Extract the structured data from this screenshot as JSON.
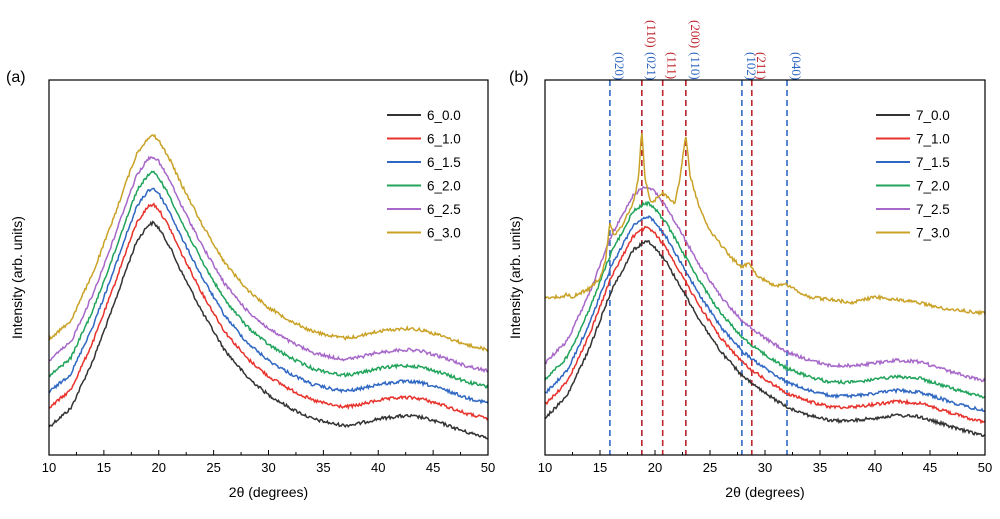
{
  "chart_data": [
    {
      "type": "line",
      "panel_label": "(a)",
      "xlabel": "2θ (degrees)",
      "ylabel": "Intensity (arb. units)",
      "xlim": [
        10,
        50
      ],
      "xticks": [
        "10",
        "15",
        "20",
        "25",
        "30",
        "35",
        "40",
        "45",
        "50"
      ],
      "legend_position": "top-right",
      "grid": false,
      "series": [
        {
          "name": "6_0.0",
          "color": "#333333",
          "offset": 0.0,
          "x": [
            10,
            12,
            14,
            16,
            17,
            18,
            19,
            19.5,
            20,
            21,
            22,
            24,
            26,
            28,
            30,
            32,
            34,
            36,
            37,
            38,
            40,
            42,
            43,
            44,
            46,
            48,
            50
          ],
          "y": [
            0.05,
            0.12,
            0.3,
            0.52,
            0.64,
            0.75,
            0.81,
            0.82,
            0.8,
            0.73,
            0.64,
            0.48,
            0.34,
            0.24,
            0.17,
            0.12,
            0.08,
            0.06,
            0.055,
            0.06,
            0.08,
            0.09,
            0.09,
            0.085,
            0.06,
            0.03,
            0.01
          ]
        },
        {
          "name": "6_1.0",
          "color": "#e8322c",
          "offset": 0.07,
          "x": [
            10,
            12,
            14,
            16,
            17,
            18,
            19,
            19.5,
            20,
            21,
            22,
            24,
            26,
            28,
            30,
            32,
            34,
            36,
            37,
            38,
            40,
            42,
            43,
            44,
            46,
            48,
            50
          ],
          "y": [
            0.05,
            0.12,
            0.3,
            0.52,
            0.64,
            0.75,
            0.81,
            0.82,
            0.8,
            0.73,
            0.64,
            0.48,
            0.34,
            0.24,
            0.17,
            0.12,
            0.08,
            0.06,
            0.055,
            0.06,
            0.08,
            0.09,
            0.09,
            0.085,
            0.06,
            0.03,
            0.01
          ]
        },
        {
          "name": "6_1.5",
          "color": "#2f67c2",
          "offset": 0.13,
          "x": [
            10,
            12,
            14,
            16,
            17,
            18,
            19,
            19.5,
            20,
            21,
            22,
            24,
            26,
            28,
            30,
            32,
            34,
            36,
            37,
            38,
            40,
            42,
            43,
            44,
            46,
            48,
            50
          ],
          "y": [
            0.05,
            0.12,
            0.3,
            0.52,
            0.64,
            0.75,
            0.81,
            0.82,
            0.8,
            0.73,
            0.64,
            0.48,
            0.34,
            0.24,
            0.17,
            0.12,
            0.08,
            0.06,
            0.055,
            0.06,
            0.08,
            0.09,
            0.09,
            0.085,
            0.06,
            0.03,
            0.01
          ]
        },
        {
          "name": "6_2.0",
          "color": "#20a35a",
          "offset": 0.19,
          "x": [
            10,
            12,
            14,
            16,
            17,
            18,
            19,
            19.5,
            20,
            21,
            22,
            24,
            26,
            28,
            30,
            32,
            34,
            36,
            37,
            38,
            40,
            42,
            43,
            44,
            46,
            48,
            50
          ],
          "y": [
            0.05,
            0.12,
            0.3,
            0.52,
            0.64,
            0.75,
            0.81,
            0.82,
            0.8,
            0.73,
            0.64,
            0.48,
            0.34,
            0.24,
            0.17,
            0.12,
            0.08,
            0.06,
            0.055,
            0.06,
            0.08,
            0.09,
            0.09,
            0.085,
            0.06,
            0.03,
            0.01
          ]
        },
        {
          "name": "6_2.5",
          "color": "#a768c9",
          "offset": 0.25,
          "x": [
            10,
            12,
            14,
            16,
            17,
            18,
            19,
            19.5,
            20,
            21,
            22,
            24,
            26,
            28,
            30,
            32,
            34,
            36,
            37,
            38,
            40,
            42,
            43,
            44,
            46,
            48,
            50
          ],
          "y": [
            0.05,
            0.12,
            0.3,
            0.52,
            0.64,
            0.75,
            0.81,
            0.82,
            0.8,
            0.73,
            0.64,
            0.48,
            0.34,
            0.24,
            0.17,
            0.12,
            0.08,
            0.06,
            0.055,
            0.06,
            0.08,
            0.09,
            0.09,
            0.085,
            0.06,
            0.03,
            0.01
          ]
        },
        {
          "name": "6_3.0",
          "color": "#c9a227",
          "offset": 0.33,
          "x": [
            10,
            12,
            14,
            16,
            17,
            18,
            19,
            19.5,
            20,
            21,
            22,
            24,
            26,
            28,
            30,
            32,
            34,
            36,
            37,
            38,
            40,
            42,
            43,
            44,
            46,
            48,
            50
          ],
          "y": [
            0.05,
            0.12,
            0.3,
            0.52,
            0.64,
            0.75,
            0.81,
            0.82,
            0.8,
            0.73,
            0.64,
            0.48,
            0.34,
            0.24,
            0.17,
            0.12,
            0.08,
            0.06,
            0.055,
            0.06,
            0.08,
            0.09,
            0.09,
            0.085,
            0.06,
            0.03,
            0.01
          ]
        }
      ]
    },
    {
      "type": "line",
      "panel_label": "(b)",
      "xlabel": "2θ (degrees)",
      "ylabel": "Intensity (arb. units)",
      "xlim": [
        10,
        50
      ],
      "xticks": [
        "10",
        "15",
        "20",
        "25",
        "30",
        "35",
        "40",
        "45",
        "50"
      ],
      "legend_position": "top-right",
      "grid": false,
      "reference_lines": [
        {
          "x": 15.9,
          "label": "(020)",
          "color": "#2f67c2"
        },
        {
          "x": 18.8,
          "label": "(021)",
          "color": "#2f67c2"
        },
        {
          "x": 18.8,
          "label": "(110)",
          "color": "#c0262d",
          "row": "top"
        },
        {
          "x": 20.7,
          "label": "(111)",
          "color": "#c0262d"
        },
        {
          "x": 22.8,
          "label": "(110)",
          "color": "#2f67c2"
        },
        {
          "x": 22.8,
          "label": "(200)",
          "color": "#c0262d",
          "row": "top"
        },
        {
          "x": 27.9,
          "label": "(102)",
          "color": "#2f67c2"
        },
        {
          "x": 28.8,
          "label": "(211)",
          "color": "#c0262d"
        },
        {
          "x": 32.0,
          "label": "(040)",
          "color": "#2f67c2"
        }
      ],
      "series": [
        {
          "name": "7_0.0",
          "color": "#333333",
          "offset": 0.0,
          "x": [
            10,
            12,
            14,
            16,
            18,
            19,
            19.5,
            20,
            21,
            22,
            24,
            26,
            28,
            30,
            32,
            34,
            36,
            38,
            40,
            42,
            44,
            46,
            48,
            50
          ],
          "y": [
            0.08,
            0.16,
            0.33,
            0.54,
            0.69,
            0.72,
            0.72,
            0.7,
            0.65,
            0.58,
            0.44,
            0.32,
            0.23,
            0.17,
            0.12,
            0.09,
            0.07,
            0.07,
            0.08,
            0.09,
            0.085,
            0.06,
            0.035,
            0.015
          ]
        },
        {
          "name": "7_1.0",
          "color": "#e8322c",
          "offset": 0.05,
          "x": [
            10,
            12,
            14,
            16,
            18,
            19,
            19.5,
            20,
            21,
            22,
            24,
            26,
            28,
            30,
            32,
            34,
            36,
            38,
            40,
            42,
            44,
            46,
            48,
            50
          ],
          "y": [
            0.08,
            0.16,
            0.33,
            0.54,
            0.69,
            0.72,
            0.72,
            0.7,
            0.65,
            0.58,
            0.44,
            0.32,
            0.23,
            0.17,
            0.12,
            0.09,
            0.07,
            0.07,
            0.08,
            0.09,
            0.085,
            0.06,
            0.035,
            0.015
          ]
        },
        {
          "name": "7_1.5",
          "color": "#2f67c2",
          "offset": 0.09,
          "x": [
            10,
            12,
            14,
            16,
            18,
            19,
            19.5,
            20,
            21,
            22,
            24,
            26,
            28,
            30,
            32,
            34,
            36,
            38,
            40,
            42,
            44,
            46,
            48,
            50
          ],
          "y": [
            0.08,
            0.16,
            0.33,
            0.54,
            0.69,
            0.72,
            0.72,
            0.7,
            0.65,
            0.58,
            0.44,
            0.32,
            0.23,
            0.17,
            0.12,
            0.09,
            0.07,
            0.07,
            0.08,
            0.09,
            0.085,
            0.06,
            0.035,
            0.015
          ]
        },
        {
          "name": "7_2.0",
          "color": "#20a35a",
          "offset": 0.14,
          "x": [
            10,
            12,
            14,
            16,
            18,
            19,
            19.5,
            20,
            21,
            22,
            24,
            26,
            28,
            30,
            32,
            34,
            36,
            38,
            40,
            42,
            44,
            46,
            48,
            50
          ],
          "y": [
            0.08,
            0.16,
            0.33,
            0.54,
            0.69,
            0.72,
            0.72,
            0.7,
            0.65,
            0.58,
            0.44,
            0.32,
            0.23,
            0.17,
            0.12,
            0.09,
            0.07,
            0.07,
            0.08,
            0.09,
            0.085,
            0.06,
            0.035,
            0.015
          ]
        },
        {
          "name": "7_2.5",
          "color": "#a768c9",
          "offset": 0.2,
          "x": [
            10,
            12,
            14,
            16,
            18,
            19,
            19.5,
            20,
            21,
            22,
            24,
            26,
            28,
            30,
            32,
            34,
            36,
            38,
            40,
            42,
            44,
            46,
            48,
            50
          ],
          "y": [
            0.08,
            0.16,
            0.33,
            0.54,
            0.69,
            0.72,
            0.72,
            0.7,
            0.65,
            0.58,
            0.44,
            0.32,
            0.23,
            0.17,
            0.12,
            0.09,
            0.07,
            0.07,
            0.08,
            0.09,
            0.085,
            0.06,
            0.035,
            0.015
          ]
        },
        {
          "name": "7_3.0",
          "color": "#c9a227",
          "offset": 0.0,
          "x": [
            10,
            11.5,
            12,
            12.5,
            14,
            15,
            15.5,
            15.9,
            16.3,
            17,
            18,
            18.5,
            18.8,
            19.1,
            19.6,
            20.2,
            20.7,
            21.2,
            21.8,
            22.3,
            22.8,
            23.2,
            24,
            25,
            26,
            27,
            27.9,
            28.5,
            28.8,
            29.2,
            30,
            31,
            32,
            33,
            34,
            36,
            38,
            40,
            42,
            44,
            46,
            48,
            50
          ],
          "y": [
            0.52,
            0.52,
            0.53,
            0.52,
            0.55,
            0.59,
            0.65,
            0.79,
            0.74,
            0.78,
            0.86,
            0.95,
            1.13,
            0.95,
            0.86,
            0.88,
            0.9,
            0.88,
            0.86,
            0.96,
            1.11,
            0.96,
            0.85,
            0.76,
            0.71,
            0.66,
            0.63,
            0.64,
            0.63,
            0.6,
            0.58,
            0.56,
            0.565,
            0.54,
            0.52,
            0.51,
            0.5,
            0.52,
            0.51,
            0.5,
            0.48,
            0.47,
            0.46
          ]
        }
      ]
    }
  ]
}
